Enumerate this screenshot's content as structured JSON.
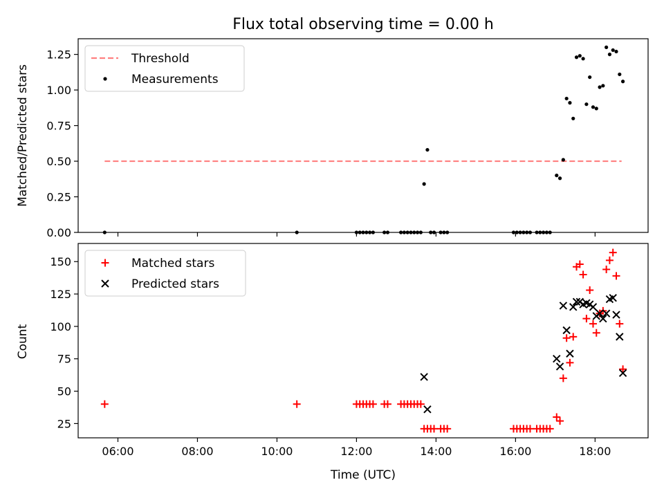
{
  "chart_data": [
    {
      "type": "scatter",
      "title": "Flux total observing time = 0.00 h",
      "xlabel": "",
      "ylabel": "Matched/Predicted stars",
      "xlim": [
        "05:00",
        "19:20"
      ],
      "ylim": [
        0,
        1.36
      ],
      "yticks": [
        "0.00",
        "0.25",
        "0.50",
        "0.75",
        "1.00",
        "1.25"
      ],
      "legend_position": "top-left",
      "grid": false,
      "series": [
        {
          "name": "Threshold",
          "kind": "dashed-line",
          "color": "#ff7f7f",
          "points": [
            [
              "05:40",
              0.5
            ],
            [
              "18:40",
              0.5
            ]
          ]
        },
        {
          "name": "Measurements",
          "kind": "dot",
          "color": "#000000",
          "points": [
            [
              "05:40",
              0.0
            ],
            [
              "10:30",
              0.0
            ],
            [
              "12:00",
              0.0
            ],
            [
              "12:05",
              0.0
            ],
            [
              "12:10",
              0.0
            ],
            [
              "12:15",
              0.0
            ],
            [
              "12:20",
              0.0
            ],
            [
              "12:25",
              0.0
            ],
            [
              "12:42",
              0.0
            ],
            [
              "12:47",
              0.0
            ],
            [
              "13:07",
              0.0
            ],
            [
              "13:12",
              0.0
            ],
            [
              "13:17",
              0.0
            ],
            [
              "13:22",
              0.0
            ],
            [
              "13:27",
              0.0
            ],
            [
              "13:32",
              0.0
            ],
            [
              "13:37",
              0.0
            ],
            [
              "13:42",
              0.34
            ],
            [
              "13:47",
              0.58
            ],
            [
              "13:52",
              0.0
            ],
            [
              "13:57",
              0.0
            ],
            [
              "14:07",
              0.0
            ],
            [
              "14:12",
              0.0
            ],
            [
              "14:17",
              0.0
            ],
            [
              "15:57",
              0.0
            ],
            [
              "16:02",
              0.0
            ],
            [
              "16:07",
              0.0
            ],
            [
              "16:12",
              0.0
            ],
            [
              "16:17",
              0.0
            ],
            [
              "16:22",
              0.0
            ],
            [
              "16:32",
              0.0
            ],
            [
              "16:37",
              0.0
            ],
            [
              "16:42",
              0.0
            ],
            [
              "16:47",
              0.0
            ],
            [
              "16:52",
              0.0
            ],
            [
              "17:02",
              0.4
            ],
            [
              "17:07",
              0.38
            ],
            [
              "17:12",
              0.51
            ],
            [
              "17:17",
              0.94
            ],
            [
              "17:22",
              0.91
            ],
            [
              "17:27",
              0.8
            ],
            [
              "17:32",
              1.23
            ],
            [
              "17:37",
              1.24
            ],
            [
              "17:42",
              1.22
            ],
            [
              "17:47",
              0.9
            ],
            [
              "17:52",
              1.09
            ],
            [
              "17:57",
              0.88
            ],
            [
              "18:02",
              0.87
            ],
            [
              "18:07",
              1.02
            ],
            [
              "18:12",
              1.03
            ],
            [
              "18:17",
              1.3
            ],
            [
              "18:22",
              1.25
            ],
            [
              "18:27",
              1.28
            ],
            [
              "18:32",
              1.27
            ],
            [
              "18:37",
              1.11
            ],
            [
              "18:42",
              1.06
            ]
          ]
        }
      ]
    },
    {
      "type": "scatter",
      "title": "",
      "xlabel": "Time (UTC)",
      "ylabel": "Count",
      "xlim": [
        "05:00",
        "19:20"
      ],
      "ylim": [
        14,
        164
      ],
      "yticks": [
        "25",
        "50",
        "75",
        "100",
        "125",
        "150"
      ],
      "xticks": [
        "06:00",
        "08:00",
        "10:00",
        "12:00",
        "14:00",
        "16:00",
        "18:00"
      ],
      "legend_position": "top-left",
      "grid": false,
      "series": [
        {
          "name": "Matched stars",
          "kind": "plus",
          "color": "#ff0000",
          "points": [
            [
              "05:40",
              40
            ],
            [
              "10:30",
              40
            ],
            [
              "12:00",
              40
            ],
            [
              "12:05",
              40
            ],
            [
              "12:10",
              40
            ],
            [
              "12:15",
              40
            ],
            [
              "12:20",
              40
            ],
            [
              "12:25",
              40
            ],
            [
              "12:42",
              40
            ],
            [
              "12:47",
              40
            ],
            [
              "13:07",
              40
            ],
            [
              "13:12",
              40
            ],
            [
              "13:17",
              40
            ],
            [
              "13:22",
              40
            ],
            [
              "13:27",
              40
            ],
            [
              "13:32",
              40
            ],
            [
              "13:37",
              40
            ],
            [
              "13:42",
              21
            ],
            [
              "13:47",
              21
            ],
            [
              "13:52",
              21
            ],
            [
              "13:57",
              21
            ],
            [
              "14:07",
              21
            ],
            [
              "14:12",
              21
            ],
            [
              "14:17",
              21
            ],
            [
              "15:57",
              21
            ],
            [
              "16:02",
              21
            ],
            [
              "16:07",
              21
            ],
            [
              "16:12",
              21
            ],
            [
              "16:17",
              21
            ],
            [
              "16:22",
              21
            ],
            [
              "16:32",
              21
            ],
            [
              "16:37",
              21
            ],
            [
              "16:42",
              21
            ],
            [
              "16:47",
              21
            ],
            [
              "16:52",
              21
            ],
            [
              "17:02",
              30
            ],
            [
              "17:07",
              27
            ],
            [
              "17:12",
              60
            ],
            [
              "17:17",
              91
            ],
            [
              "17:22",
              72
            ],
            [
              "17:27",
              92
            ],
            [
              "17:32",
              146
            ],
            [
              "17:37",
              148
            ],
            [
              "17:42",
              140
            ],
            [
              "17:47",
              106
            ],
            [
              "17:52",
              128
            ],
            [
              "17:57",
              102
            ],
            [
              "18:02",
              95
            ],
            [
              "18:07",
              110
            ],
            [
              "18:12",
              112
            ],
            [
              "18:17",
              144
            ],
            [
              "18:22",
              151
            ],
            [
              "18:27",
              157
            ],
            [
              "18:32",
              139
            ],
            [
              "18:37",
              102
            ],
            [
              "18:42",
              67
            ]
          ]
        },
        {
          "name": "Predicted stars",
          "kind": "x",
          "color": "#000000",
          "points": [
            [
              "13:42",
              61
            ],
            [
              "13:47",
              36
            ],
            [
              "17:02",
              75
            ],
            [
              "17:07",
              69
            ],
            [
              "17:12",
              116
            ],
            [
              "17:17",
              97
            ],
            [
              "17:22",
              79
            ],
            [
              "17:27",
              115
            ],
            [
              "17:32",
              119
            ],
            [
              "17:37",
              119
            ],
            [
              "17:42",
              117
            ],
            [
              "17:47",
              118
            ],
            [
              "17:52",
              117
            ],
            [
              "17:57",
              115
            ],
            [
              "18:02",
              108
            ],
            [
              "18:07",
              110
            ],
            [
              "18:12",
              106
            ],
            [
              "18:17",
              110
            ],
            [
              "18:22",
              121
            ],
            [
              "18:27",
              122
            ],
            [
              "18:32",
              109
            ],
            [
              "18:37",
              92
            ],
            [
              "18:42",
              64
            ]
          ]
        }
      ]
    }
  ]
}
